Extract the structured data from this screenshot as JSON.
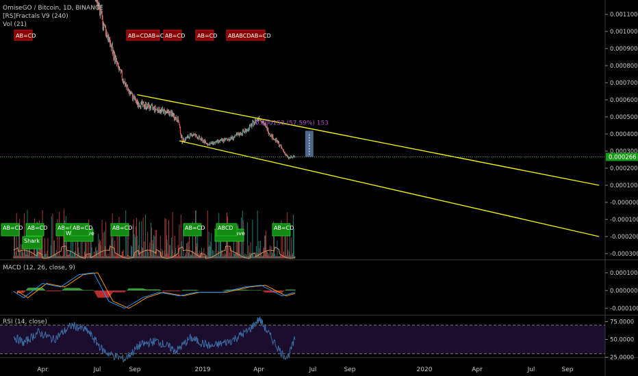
{
  "legends": {
    "symbol": "OmiseGO / Bitcoin, 1D, BINANCE",
    "fractals": "[RS]Fractals V9 (240)",
    "volume": "Vol (21)",
    "macd": "MACD (12, 26, close, 9)",
    "rsi": "RSI (14, close)"
  },
  "colors": {
    "background": "#000000",
    "up": "#26a69a",
    "down": "#ef5350",
    "channel": "#f0f000",
    "price_line": "#2e9b2e",
    "price_tag": "#1a9a1a",
    "measure_text": "#b04ac8",
    "macd_line": "#2196f3",
    "signal_line": "#ff9800",
    "rsi_line": "#3d6ea5",
    "volume_ma": "#d8905a"
  },
  "price_tag": "0.000266",
  "measure_label": "0.000153 (57.59%) 153",
  "chart_data": [
    {
      "type": "candlestick",
      "title": "OmiseGO / Bitcoin, 1D, BINANCE",
      "yticks": [
        "0.001100",
        "0.001000",
        "0.000900",
        "0.000800",
        "0.000700",
        "0.000600",
        "0.000500",
        "0.000400",
        "0.000300",
        "0.000200",
        "0.000100",
        "-0.000000",
        "-0.000100",
        "-0.000200",
        "-0.000300"
      ],
      "ylim": [
        -0.00031,
        0.00116
      ],
      "xticks": [
        "Apr",
        "Jul",
        "Sep",
        "2019",
        "Apr",
        "Jul",
        "Sep",
        "2020",
        "Apr",
        "Jul",
        "Sep"
      ],
      "x_range": [
        "2018-02-07",
        "2020-10-25"
      ],
      "x_data_end": "2019-06-01",
      "last_price": 0.000266,
      "price_path": [
        {
          "x": "2018-02-10",
          "y": 0.0023
        },
        {
          "x": "2018-06-10",
          "y": 0.0015
        },
        {
          "x": "2018-07-01",
          "y": 0.00116
        },
        {
          "x": "2018-07-20",
          "y": 0.00095
        },
        {
          "x": "2018-08-05",
          "y": 0.00078
        },
        {
          "x": "2018-08-20",
          "y": 0.00066
        },
        {
          "x": "2018-09-05",
          "y": 0.00058
        },
        {
          "x": "2018-09-25",
          "y": 0.00056
        },
        {
          "x": "2018-10-15",
          "y": 0.00054
        },
        {
          "x": "2018-11-05",
          "y": 0.00052
        },
        {
          "x": "2018-11-18",
          "y": 0.00048
        },
        {
          "x": "2018-11-25",
          "y": 0.00036
        },
        {
          "x": "2018-12-15",
          "y": 0.0004
        },
        {
          "x": "2019-01-10",
          "y": 0.00034
        },
        {
          "x": "2019-02-01",
          "y": 0.00036
        },
        {
          "x": "2019-02-20",
          "y": 0.00038
        },
        {
          "x": "2019-03-15",
          "y": 0.00043
        },
        {
          "x": "2019-04-02",
          "y": 0.0005
        },
        {
          "x": "2019-04-20",
          "y": 0.0004
        },
        {
          "x": "2019-05-05",
          "y": 0.00034
        },
        {
          "x": "2019-05-20",
          "y": 0.00026
        },
        {
          "x": "2019-06-01",
          "y": 0.000266
        }
      ],
      "channel": [
        {
          "name": "upper",
          "from": {
            "x": "2018-09-05",
            "y": 0.00063
          },
          "to": {
            "x": "2020-10-25",
            "y": 0.0001
          }
        },
        {
          "name": "lower",
          "from": {
            "x": "2018-11-20",
            "y": 0.00036
          },
          "to": {
            "x": "2020-10-25",
            "y": -0.0002
          }
        }
      ],
      "measure": {
        "x": "2019-06-25",
        "from": 0.000266,
        "to": 0.000419
      },
      "fractal_labels": [
        {
          "text": "AB=CD",
          "x": "2018-03-08",
          "color": "red"
        },
        {
          "text": "AB=CDAB=CD",
          "x": "2018-09-01",
          "color": "red"
        },
        {
          "text": "AB=CD",
          "x": "2018-10-20",
          "color": "red"
        },
        {
          "text": "AB=CD",
          "x": "2018-12-10",
          "color": "red"
        },
        {
          "text": "ABABCDAB=CD",
          "x": "2019-03-20",
          "color": "red"
        }
      ]
    },
    {
      "type": "bar",
      "title": "Vol (21)",
      "pattern_labels": [
        {
          "text": "AB=CD",
          "x": "2018-02-20",
          "color": "green"
        },
        {
          "text": "Shark",
          "x": "2018-03-15",
          "color": "green"
        },
        {
          "text": "AB=CD",
          "x": "2018-03-20",
          "color": "green"
        },
        {
          "text": "AB=CD",
          "x": "2018-05-25",
          "color": "green"
        },
        {
          "text": "Wolf Wave",
          "x": "2018-06-20",
          "color": "green"
        },
        {
          "text": "AB=CD",
          "x": "2018-06-10",
          "color": "green"
        },
        {
          "text": "AB=CD",
          "x": "2018-08-15",
          "color": "green"
        },
        {
          "text": "AB=CD",
          "x": "2018-12-05",
          "color": "green"
        },
        {
          "text": "Wolf Wave",
          "x": "2019-02-25",
          "color": "green"
        },
        {
          "text": "ABCD",
          "x": "2019-02-25",
          "color": "green"
        },
        {
          "text": "AB=CD",
          "x": "2019-05-15",
          "color": "green"
        }
      ]
    },
    {
      "type": "line",
      "title": "MACD (12, 26, close, 9)",
      "yticks": [
        "0.000100",
        "0.000000",
        "-0.000100"
      ],
      "ylim": [
        -0.00013,
        0.00013
      ],
      "series": [],
      "macd_path": [
        {
          "x": "2018-02-10",
          "y": 0.0
        },
        {
          "x": "2018-03-01",
          "y": -4e-05
        },
        {
          "x": "2018-04-01",
          "y": 4e-05
        },
        {
          "x": "2018-05-01",
          "y": 2e-05
        },
        {
          "x": "2018-06-01",
          "y": 9e-05
        },
        {
          "x": "2018-06-25",
          "y": 0.0001
        },
        {
          "x": "2018-07-20",
          "y": -6e-05
        },
        {
          "x": "2018-08-15",
          "y": -0.0001
        },
        {
          "x": "2018-09-15",
          "y": -4e-05
        },
        {
          "x": "2018-10-15",
          "y": -1e-05
        },
        {
          "x": "2018-11-20",
          "y": -3e-05
        },
        {
          "x": "2018-12-20",
          "y": -1e-05
        },
        {
          "x": "2019-02-01",
          "y": -1e-05
        },
        {
          "x": "2019-03-10",
          "y": 2e-05
        },
        {
          "x": "2019-04-05",
          "y": 3e-05
        },
        {
          "x": "2019-05-10",
          "y": -3e-05
        },
        {
          "x": "2019-06-01",
          "y": -1e-05
        }
      ]
    },
    {
      "type": "line",
      "title": "RSI (14, close)",
      "yticks": [
        "75.0000",
        "50.0000",
        "25.0000"
      ],
      "ylim": [
        15,
        85
      ],
      "bands": [
        30,
        70
      ],
      "rsi_path": [
        {
          "x": "2018-02-10",
          "y": 55
        },
        {
          "x": "2018-03-01",
          "y": 45
        },
        {
          "x": "2018-03-25",
          "y": 60
        },
        {
          "x": "2018-04-20",
          "y": 50
        },
        {
          "x": "2018-05-20",
          "y": 70
        },
        {
          "x": "2018-06-15",
          "y": 62
        },
        {
          "x": "2018-07-10",
          "y": 35
        },
        {
          "x": "2018-07-25",
          "y": 28
        },
        {
          "x": "2018-08-15",
          "y": 22
        },
        {
          "x": "2018-09-10",
          "y": 42
        },
        {
          "x": "2018-10-10",
          "y": 48
        },
        {
          "x": "2018-11-15",
          "y": 34
        },
        {
          "x": "2018-12-10",
          "y": 52
        },
        {
          "x": "2019-01-15",
          "y": 40
        },
        {
          "x": "2019-02-15",
          "y": 48
        },
        {
          "x": "2019-03-15",
          "y": 62
        },
        {
          "x": "2019-04-02",
          "y": 79
        },
        {
          "x": "2019-04-20",
          "y": 55
        },
        {
          "x": "2019-05-10",
          "y": 30
        },
        {
          "x": "2019-05-20",
          "y": 25
        },
        {
          "x": "2019-06-01",
          "y": 50
        }
      ]
    }
  ]
}
